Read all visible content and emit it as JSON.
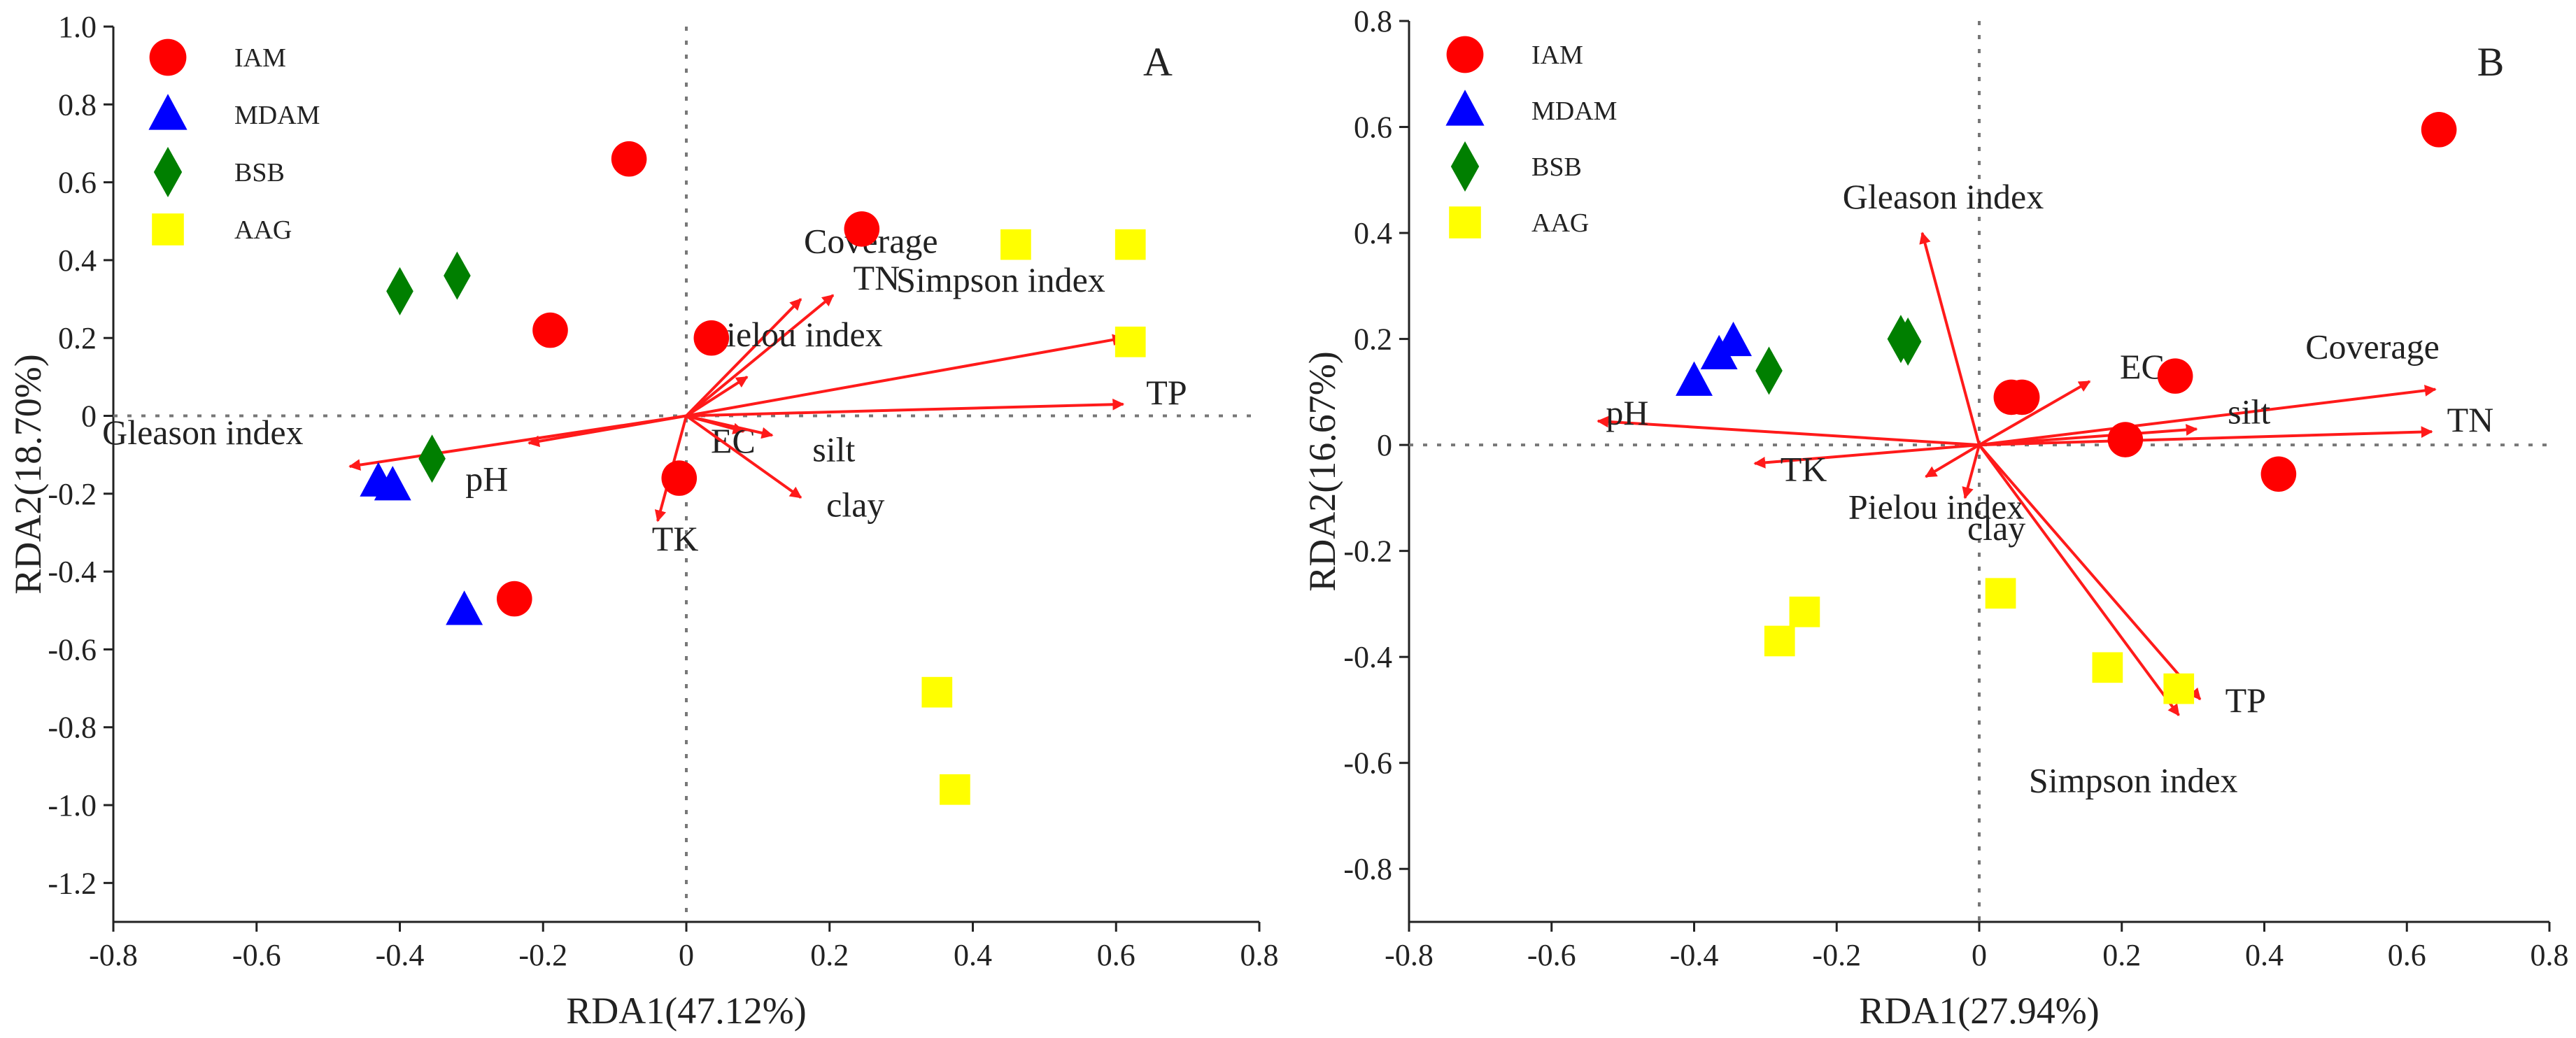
{
  "chart_data": [
    {
      "type": "scatter",
      "panel": "A",
      "xlabel": "RDA1(47.12%)",
      "ylabel": "RDA2(18.70%)",
      "xlim": [
        -0.8,
        0.8
      ],
      "ylim": [
        -1.3,
        1.0
      ],
      "xticks": [
        "-0.8",
        "-0.6",
        "-0.4",
        "-0.2",
        "0",
        "0.2",
        "0.4",
        "0.6",
        "0.8"
      ],
      "yticks": [
        "1.0",
        "0.8",
        "0.6",
        "0.4",
        "0.2",
        "0",
        "-0.2",
        "-0.4",
        "-0.6",
        "-0.8",
        "-1.0",
        "-1.2"
      ],
      "legend": [
        {
          "name": "IAM",
          "shape": "circle",
          "color": "#ff0000"
        },
        {
          "name": "MDAM",
          "shape": "triangle",
          "color": "#0000ff"
        },
        {
          "name": "BSB",
          "shape": "diamond",
          "color": "#007f00"
        },
        {
          "name": "AAG",
          "shape": "square",
          "color": "#ffff00"
        }
      ],
      "series": [
        {
          "name": "IAM",
          "points": [
            [
              -0.08,
              0.66
            ],
            [
              0.245,
              0.48
            ],
            [
              -0.19,
              0.22
            ],
            [
              0.035,
              0.2
            ],
            [
              -0.01,
              -0.16
            ],
            [
              -0.24,
              -0.47
            ]
          ]
        },
        {
          "name": "MDAM",
          "points": [
            [
              -0.43,
              -0.17
            ],
            [
              -0.41,
              -0.18
            ],
            [
              -0.31,
              -0.5
            ]
          ]
        },
        {
          "name": "BSB",
          "points": [
            [
              -0.4,
              0.32
            ],
            [
              -0.32,
              0.36
            ],
            [
              -0.355,
              -0.11
            ]
          ]
        },
        {
          "name": "AAG",
          "points": [
            [
              0.46,
              0.44
            ],
            [
              0.62,
              0.44
            ],
            [
              0.62,
              0.19
            ],
            [
              0.35,
              -0.71
            ],
            [
              0.375,
              -0.96
            ]
          ]
        }
      ],
      "vectors": [
        {
          "label": "Coverage",
          "x": 0.16,
          "y": 0.3
        },
        {
          "label": "TN",
          "x": 0.205,
          "y": 0.31
        },
        {
          "label": "Simpson index",
          "x": 0.61,
          "y": 0.2
        },
        {
          "label": "Pielou index",
          "x": 0.085,
          "y": 0.1
        },
        {
          "label": "TP",
          "x": 0.61,
          "y": 0.03
        },
        {
          "label": "EC",
          "x": 0.08,
          "y": -0.04
        },
        {
          "label": "silt",
          "x": 0.12,
          "y": -0.05
        },
        {
          "label": "clay",
          "x": 0.16,
          "y": -0.21
        },
        {
          "label": "TK",
          "x": -0.04,
          "y": -0.27
        },
        {
          "label": "pH",
          "x": -0.22,
          "y": -0.07
        },
        {
          "label": "Gleason index",
          "x": -0.47,
          "y": -0.13
        }
      ],
      "panel_label": "A"
    },
    {
      "type": "scatter",
      "panel": "B",
      "xlabel": "RDA1(27.94%)",
      "ylabel": "RDA2(16.67%)",
      "xlim": [
        -0.8,
        0.8
      ],
      "ylim": [
        -0.9,
        0.8
      ],
      "xticks": [
        "-0.8",
        "-0.6",
        "-0.4",
        "-0.2",
        "0",
        "0.2",
        "0.4",
        "0.6",
        "0.8"
      ],
      "yticks": [
        "0.8",
        "0.6",
        "0.4",
        "0.2",
        "0",
        "-0.2",
        "-0.4",
        "-0.6",
        "-0.8"
      ],
      "legend": [
        {
          "name": "IAM",
          "shape": "circle",
          "color": "#ff0000"
        },
        {
          "name": "MDAM",
          "shape": "triangle",
          "color": "#0000ff"
        },
        {
          "name": "BSB",
          "shape": "diamond",
          "color": "#007f00"
        },
        {
          "name": "AAG",
          "shape": "square",
          "color": "#ffff00"
        }
      ],
      "series": [
        {
          "name": "IAM",
          "points": [
            [
              0.645,
              0.595
            ],
            [
              0.045,
              0.09
            ],
            [
              0.06,
              0.09
            ],
            [
              0.275,
              0.13
            ],
            [
              0.205,
              0.01
            ],
            [
              0.42,
              -0.055
            ]
          ]
        },
        {
          "name": "MDAM",
          "points": [
            [
              -0.4,
              0.12
            ],
            [
              -0.365,
              0.17
            ],
            [
              -0.345,
              0.195
            ]
          ]
        },
        {
          "name": "BSB",
          "points": [
            [
              -0.295,
              0.14
            ],
            [
              -0.11,
              0.2
            ],
            [
              -0.1,
              0.195
            ]
          ]
        },
        {
          "name": "AAG",
          "points": [
            [
              -0.245,
              -0.315
            ],
            [
              -0.28,
              -0.37
            ],
            [
              0.03,
              -0.28
            ],
            [
              0.18,
              -0.42
            ],
            [
              0.28,
              -0.46
            ]
          ]
        }
      ],
      "vectors": [
        {
          "label": "Gleason index",
          "x": -0.08,
          "y": 0.4
        },
        {
          "label": "EC",
          "x": 0.155,
          "y": 0.12
        },
        {
          "label": "Coverage",
          "x": 0.64,
          "y": 0.105
        },
        {
          "label": "silt",
          "x": 0.305,
          "y": 0.03
        },
        {
          "label": "TN",
          "x": 0.635,
          "y": 0.025
        },
        {
          "label": "pH",
          "x": -0.535,
          "y": 0.045
        },
        {
          "label": "TK",
          "x": -0.315,
          "y": -0.035
        },
        {
          "label": "Pielou index",
          "x": -0.075,
          "y": -0.06
        },
        {
          "label": "clay",
          "x": -0.02,
          "y": -0.1
        },
        {
          "label": "TP",
          "x": 0.31,
          "y": -0.48
        },
        {
          "label": "Simpson index",
          "x": 0.28,
          "y": -0.51
        }
      ],
      "panel_label": "B"
    }
  ]
}
